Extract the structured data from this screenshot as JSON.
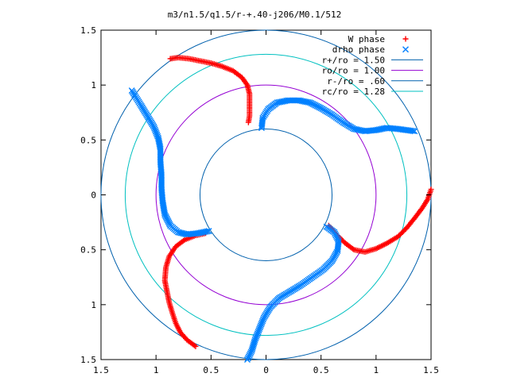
{
  "chart_data": {
    "type": "scatter",
    "title": "m3/n1.5/q1.5/r-+.40-j206/M0.1/512",
    "xlabel": "",
    "ylabel": "",
    "xlim": [
      -1.5,
      1.5
    ],
    "ylim": [
      -1.5,
      1.5
    ],
    "xticks": [
      -1.5,
      -1,
      -0.5,
      0,
      0.5,
      1,
      1.5
    ],
    "xtick_labels": [
      "1.5",
      "1",
      "0.5",
      "0",
      "0.5",
      "1",
      "1.5"
    ],
    "yticks": [
      1.5,
      1,
      0.5,
      0,
      -0.5,
      -1,
      -1.5
    ],
    "ytick_labels": [
      "1.5",
      "1",
      "0.5",
      "0",
      "0.5",
      "1",
      "1.5"
    ],
    "grid": false,
    "legend_position": "top-right",
    "series": [
      {
        "name": "W phase",
        "marker": "+",
        "color": "#ff0000",
        "points": [
          [
            -0.87,
            1.24
          ],
          [
            -0.8,
            1.25
          ],
          [
            -0.7,
            1.24
          ],
          [
            -0.6,
            1.22
          ],
          [
            -0.5,
            1.2
          ],
          [
            -0.4,
            1.17
          ],
          [
            -0.3,
            1.13
          ],
          [
            -0.22,
            1.07
          ],
          [
            -0.17,
            1.0
          ],
          [
            -0.15,
            0.92
          ],
          [
            -0.15,
            0.85
          ],
          [
            -0.15,
            0.78
          ],
          [
            -0.15,
            0.72
          ],
          [
            -0.16,
            0.66
          ],
          [
            1.5,
            0.05
          ],
          [
            1.47,
            -0.04
          ],
          [
            1.42,
            -0.12
          ],
          [
            1.36,
            -0.2
          ],
          [
            1.28,
            -0.3
          ],
          [
            1.2,
            -0.38
          ],
          [
            1.1,
            -0.44
          ],
          [
            1.0,
            -0.49
          ],
          [
            0.9,
            -0.52
          ],
          [
            0.8,
            -0.5
          ],
          [
            0.72,
            -0.44
          ],
          [
            0.64,
            -0.36
          ],
          [
            0.57,
            -0.28
          ],
          [
            -0.64,
            -1.38
          ],
          [
            -0.72,
            -1.32
          ],
          [
            -0.78,
            -1.25
          ],
          [
            -0.82,
            -1.17
          ],
          [
            -0.85,
            -1.08
          ],
          [
            -0.88,
            -0.98
          ],
          [
            -0.9,
            -0.88
          ],
          [
            -0.92,
            -0.78
          ],
          [
            -0.91,
            -0.66
          ],
          [
            -0.88,
            -0.56
          ],
          [
            -0.82,
            -0.47
          ],
          [
            -0.74,
            -0.41
          ],
          [
            -0.64,
            -0.37
          ],
          [
            -0.55,
            -0.35
          ]
        ]
      },
      {
        "name": "drho phase",
        "marker": "x",
        "color": "#0080ff",
        "points": [
          [
            -0.04,
            0.61
          ],
          [
            -0.03,
            0.7
          ],
          [
            0.02,
            0.78
          ],
          [
            0.1,
            0.84
          ],
          [
            0.2,
            0.86
          ],
          [
            0.3,
            0.86
          ],
          [
            0.4,
            0.84
          ],
          [
            0.5,
            0.79
          ],
          [
            0.6,
            0.73
          ],
          [
            0.7,
            0.66
          ],
          [
            0.8,
            0.6
          ],
          [
            0.9,
            0.58
          ],
          [
            1.0,
            0.59
          ],
          [
            1.1,
            0.61
          ],
          [
            1.2,
            0.6
          ],
          [
            1.35,
            0.58
          ],
          [
            0.55,
            -0.29
          ],
          [
            0.62,
            -0.34
          ],
          [
            0.66,
            -0.42
          ],
          [
            0.65,
            -0.51
          ],
          [
            0.6,
            -0.6
          ],
          [
            0.52,
            -0.68
          ],
          [
            0.42,
            -0.75
          ],
          [
            0.32,
            -0.82
          ],
          [
            0.22,
            -0.88
          ],
          [
            0.12,
            -0.94
          ],
          [
            0.04,
            -1.02
          ],
          [
            -0.02,
            -1.12
          ],
          [
            -0.06,
            -1.22
          ],
          [
            -0.1,
            -1.32
          ],
          [
            -0.13,
            -1.42
          ],
          [
            -0.17,
            -1.5
          ],
          [
            -0.52,
            -0.33
          ],
          [
            -0.62,
            -0.35
          ],
          [
            -0.72,
            -0.36
          ],
          [
            -0.8,
            -0.34
          ],
          [
            -0.87,
            -0.28
          ],
          [
            -0.92,
            -0.18
          ],
          [
            -0.94,
            -0.06
          ],
          [
            -0.95,
            0.06
          ],
          [
            -0.95,
            0.18
          ],
          [
            -0.96,
            0.3
          ],
          [
            -0.96,
            0.42
          ],
          [
            -0.98,
            0.52
          ],
          [
            -1.02,
            0.62
          ],
          [
            -1.08,
            0.72
          ],
          [
            -1.14,
            0.82
          ],
          [
            -1.19,
            0.9
          ],
          [
            -1.22,
            0.95
          ]
        ]
      }
    ],
    "circles": [
      {
        "name": "r+/ro = 1.50",
        "radius": 1.5,
        "color": "#0060ad"
      },
      {
        "name": "ro/ro = 1.00",
        "radius": 1.0,
        "color": "#9400d3"
      },
      {
        "name": "r-/ro = .60",
        "radius": 0.6,
        "color": "#0060ad"
      },
      {
        "name": "rc/ro = 1.28",
        "radius": 1.28,
        "color": "#00c0c0"
      }
    ]
  }
}
